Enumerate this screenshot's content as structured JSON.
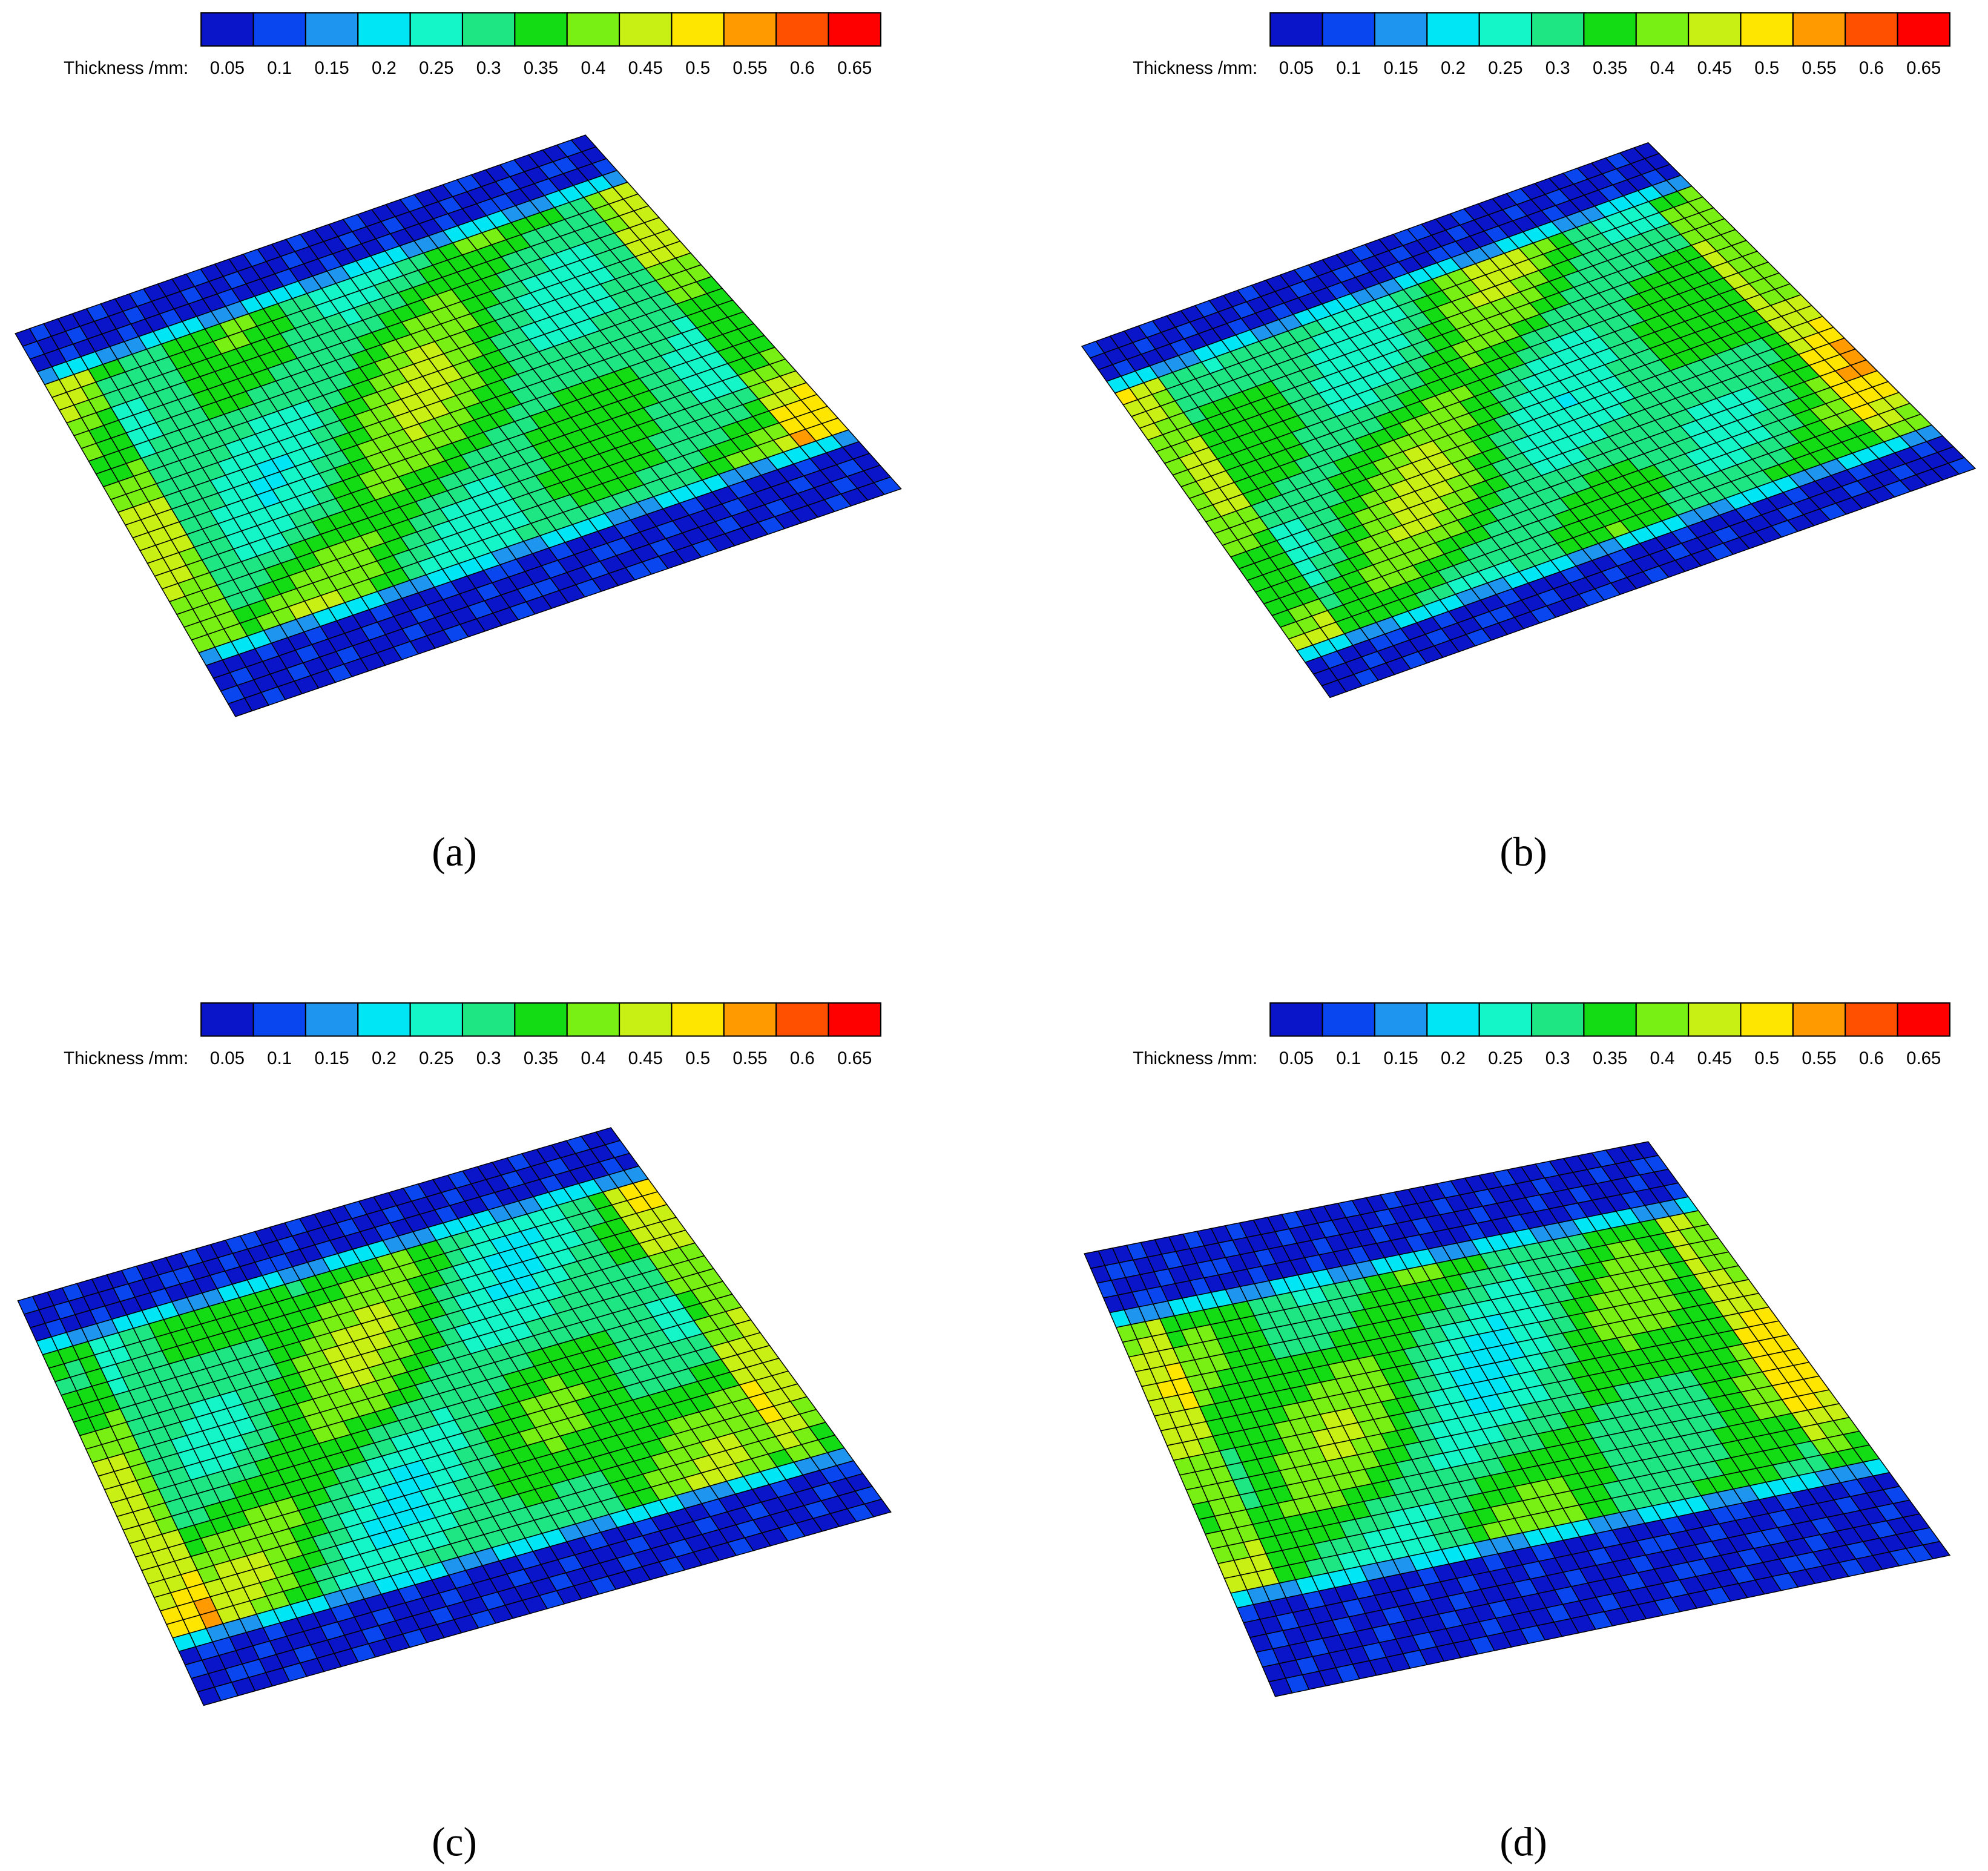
{
  "palette": [
    "#0a14c8",
    "#0a46f0",
    "#1e96f0",
    "#00e6f5",
    "#14f5c8",
    "#1ee682",
    "#14dc14",
    "#78f014",
    "#c8f014",
    "#ffe600",
    "#ff9b00",
    "#ff5000",
    "#ff0000"
  ],
  "panels": [
    {
      "colorbar": {
        "label": "Thickness /mm:",
        "ticks": [
          0.05,
          0.1,
          0.15,
          0.2,
          0.25,
          0.3,
          0.35,
          0.4,
          0.45,
          0.5,
          0.55,
          0.6,
          0.65
        ]
      },
      "caption": "(a)"
    },
    {
      "colorbar": {
        "label": "Thickness /mm:",
        "ticks": [
          0.05,
          0.1,
          0.15,
          0.2,
          0.25,
          0.3,
          0.35,
          0.4,
          0.45,
          0.5,
          0.55,
          0.6,
          0.65
        ]
      },
      "caption": "(b)"
    },
    {
      "colorbar": {
        "label": "Thickness /mm:",
        "ticks": [
          0.05,
          0.1,
          0.15,
          0.2,
          0.25,
          0.3,
          0.35,
          0.4,
          0.45,
          0.5,
          0.55,
          0.6,
          0.65
        ]
      },
      "caption": "(c)"
    },
    {
      "colorbar": {
        "label": "Thickness /mm:",
        "ticks": [
          0.05,
          0.1,
          0.15,
          0.2,
          0.25,
          0.3,
          0.35,
          0.4,
          0.45,
          0.5,
          0.55,
          0.6,
          0.65
        ]
      },
      "caption": "(d)"
    }
  ]
}
